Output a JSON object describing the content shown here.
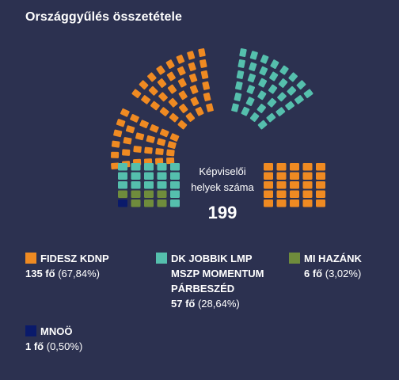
{
  "title": "Országgyűlés összetétele",
  "center_label": "Képviselői\nhelyek száma",
  "total": "199",
  "legend": [
    {
      "label": "FIDESZ  KDNP",
      "count": "135 fő",
      "pct": "(67,84%)",
      "color": "#ef8a22"
    },
    {
      "label": "DK  JOBBIK  LMP\nMSZP  MOMENTUM\nPÁRBESZÉD",
      "count": "57 fő",
      "pct": "(28,64%)",
      "color": "#55bfad"
    },
    {
      "label": "MI HAZÁNK",
      "count": "6 fő",
      "pct": "(3,02%)",
      "color": "#6f8c3c"
    },
    {
      "label": "MNOÖ",
      "count": "1 fő",
      "pct": "(0,50%)",
      "color": "#0a1a6b"
    }
  ],
  "chart_data": {
    "type": "parliament",
    "title": "Országgyűlés összetétele",
    "total_seats": 199,
    "categories": [
      "FIDESZ  KDNP",
      "DK  JOBBIK  LMP  MSZP  MOMENTUM  PÁRBESZÉD",
      "MI HAZÁNK",
      "MNOÖ"
    ],
    "values": [
      135,
      57,
      6,
      1
    ],
    "percentages": [
      67.84,
      28.64,
      3.02,
      0.5
    ],
    "colors": [
      "#ef8a22",
      "#55bfad",
      "#6f8c3c",
      "#0a1a6b"
    ]
  }
}
